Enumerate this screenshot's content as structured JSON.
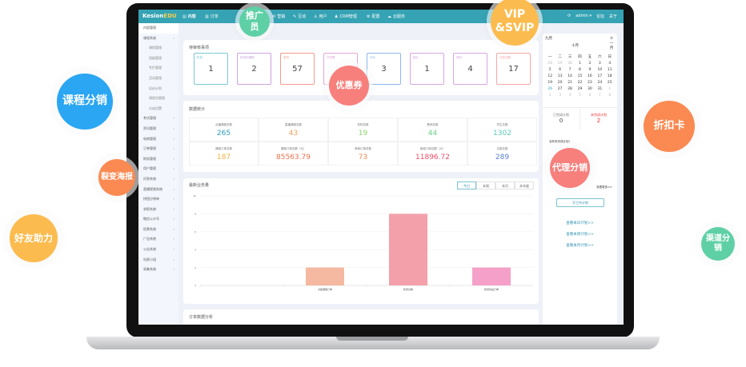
{
  "app": {
    "logo_a": "Kesion",
    "logo_b": "EDU",
    "nav": [
      "内容",
      "订单",
      "营销",
      "互动",
      "用户",
      "CRM管理",
      "配置",
      "云服务"
    ],
    "user": "admin ▾",
    "links": [
      "论坛",
      "关于"
    ]
  },
  "sidebar": [
    {
      "label": "内容管理",
      "type": "head"
    },
    {
      "label": "课程系统",
      "type": "arr"
    },
    {
      "label": "课程管理",
      "type": "sub"
    },
    {
      "label": "班级管理",
      "type": "sub"
    },
    {
      "label": "专栏管理",
      "type": "sub"
    },
    {
      "label": "活动管理",
      "type": "sub"
    },
    {
      "label": "培训计划",
      "type": "sub"
    },
    {
      "label": "课程包管理",
      "type": "sub"
    },
    {
      "label": "分成设置",
      "type": "sub"
    },
    {
      "label": "考试管理",
      "type": "arr"
    },
    {
      "label": "资讯管理",
      "type": "arr"
    },
    {
      "label": "电商管理",
      "type": "arr"
    },
    {
      "label": "订单管理",
      "type": "arr"
    },
    {
      "label": "财务管理",
      "type": "arr"
    },
    {
      "label": "用户管理",
      "type": "arr"
    },
    {
      "label": "问答系统",
      "type": "arr"
    },
    {
      "label": "直播视频系统",
      "type": "arr"
    },
    {
      "label": "拼团分销单",
      "type": "arr"
    },
    {
      "label": "求职系统",
      "type": "arr"
    },
    {
      "label": "微信公众号",
      "type": "arr"
    },
    {
      "label": "投票系统",
      "type": "arr"
    },
    {
      "label": "广告系统",
      "type": "arr"
    },
    {
      "label": "公告系统",
      "type": "arr"
    },
    {
      "label": "社群小组",
      "type": "arr"
    },
    {
      "label": "采集系统",
      "type": "arr"
    }
  ],
  "pending": {
    "title": "待审核事项",
    "items": [
      {
        "label": "机构",
        "value": "1",
        "color": "#7cc8d6"
      },
      {
        "label": "机构的课程",
        "value": "2",
        "color": "#c9a3e0"
      },
      {
        "label": "发货",
        "value": "57",
        "color": "#f29a8e"
      },
      {
        "label": "开发票",
        "value": "",
        "color": "#e3a7d8"
      },
      {
        "label": "评价",
        "value": "3",
        "color": "#8cb8e8"
      },
      {
        "label": "图片",
        "value": "1",
        "color": "#d7a6e3"
      },
      {
        "label": "资料",
        "value": "4",
        "color": "#d7a6e3"
      },
      {
        "label": "问答问题",
        "value": "17",
        "color": "#f2a8a8"
      }
    ]
  },
  "stats": {
    "title": "数据统计",
    "items": [
      {
        "label": "点播课程总数",
        "value": "265",
        "color": "#2b9ab8"
      },
      {
        "label": "直播课程总数",
        "value": "43",
        "color": "#f4a15c"
      },
      {
        "label": "机构总数",
        "value": "19",
        "color": "#8fd46a"
      },
      {
        "label": "教师总数",
        "value": "44",
        "color": "#6ed18a"
      },
      {
        "label": "学生总数",
        "value": "1302",
        "color": "#5ccbb8"
      },
      {
        "label": "课程订单总数",
        "value": "187",
        "color": "#f5b440"
      },
      {
        "label": "课程订单总额（元）",
        "value": "85563.79",
        "color": "#f0704f"
      },
      {
        "label": "商城订单总数",
        "value": "73",
        "color": "#f38a4f"
      },
      {
        "label": "商城订单总额（元）",
        "value": "11896.72",
        "color": "#ee4f6a"
      },
      {
        "label": "试卷总数",
        "value": "289",
        "color": "#5a7fd4"
      }
    ]
  },
  "business": {
    "title": "最新业务量",
    "tabs": [
      "今日",
      "本周",
      "本月",
      "本年度"
    ],
    "active_tab": 0
  },
  "chart_data": {
    "type": "bar",
    "categories": [
      "",
      "点播课程订单",
      "新增试卷",
      "新增商品订单"
    ],
    "values": [
      0,
      2,
      8,
      2
    ],
    "colors": [
      "#f4b9a0",
      "#f4b9a0",
      "#f4a0aa",
      "#f4a0c8"
    ],
    "ylim": [
      0,
      10
    ],
    "yticks": [
      0,
      2,
      4,
      6,
      8,
      10
    ],
    "grid": true
  },
  "orders": {
    "title": "订单数据分析"
  },
  "calendar": {
    "prev": "九月",
    "month": "十月",
    "next": "十一月",
    "weekdays": [
      "一",
      "二",
      "三",
      "四",
      "五",
      "六",
      "日"
    ],
    "days": [
      "28",
      "29",
      "30",
      "1",
      "2",
      "3",
      "4",
      "5",
      "6",
      "7",
      "8",
      "9",
      "10",
      "11",
      "12",
      "13",
      "14",
      "15",
      "16",
      "17",
      "18",
      "19",
      "20",
      "21",
      "22",
      "23",
      "24",
      "25",
      "26",
      "27",
      "28",
      "29",
      "30",
      "31",
      "1",
      "2",
      "3",
      "4",
      "5",
      "6",
      "7",
      "8"
    ],
    "today": "26"
  },
  "plans": {
    "done_label": "已完成计划",
    "done": "0",
    "todo_label": "未完成计划",
    "todo": "2",
    "empty": "没有未完成计划！",
    "more": "查看更多>>",
    "write": "写工作计划",
    "links": [
      "查看本日计划>>",
      "查看本周计划>>",
      "查看本月计划>>"
    ]
  },
  "bubbles": [
    {
      "text": "推广员",
      "color": "#5fd0a6"
    },
    {
      "text": "VIP &SVIP",
      "color": "#fbbb4e"
    },
    {
      "text": "课程分销",
      "color": "#2aa6f2"
    },
    {
      "text": "优惠券",
      "color": "#f77f7c"
    },
    {
      "text": "折扣卡",
      "color": "#fa8a52"
    },
    {
      "text": "裂变海报",
      "color": "#fa8a52"
    },
    {
      "text": "代理分销",
      "color": "#f77f7c"
    },
    {
      "text": "好友助力",
      "color": "#fbbb4e"
    },
    {
      "text": "渠道分销",
      "color": "#5fd0a6"
    }
  ]
}
